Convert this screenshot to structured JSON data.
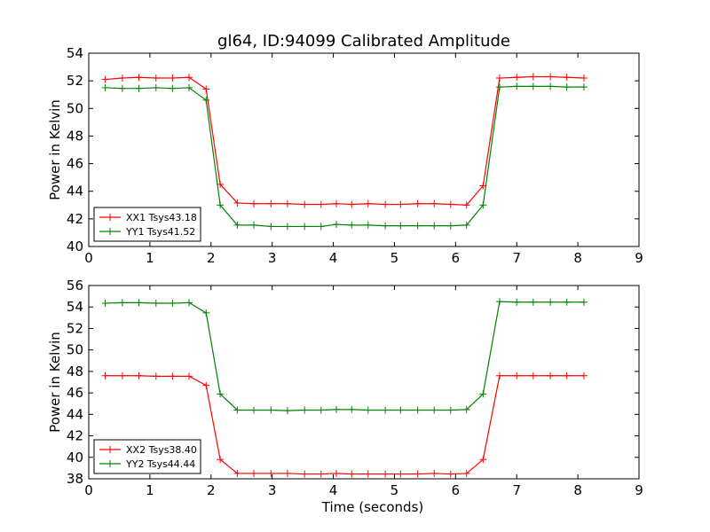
{
  "chart_data": [
    {
      "type": "line",
      "title": "gl64, ID:94099 Calibrated Amplitude",
      "xlabel": "",
      "ylabel": "Power in Kelvin",
      "xlim": [
        0,
        9
      ],
      "ylim": [
        40,
        54
      ],
      "xticks": [
        "0",
        "1",
        "2",
        "3",
        "4",
        "5",
        "6",
        "7",
        "8",
        "9"
      ],
      "yticks": [
        "40",
        "42",
        "44",
        "46",
        "48",
        "50",
        "52",
        "54"
      ],
      "legend_position": "lower-left",
      "grid": false,
      "x": [
        0.27,
        0.55,
        0.82,
        1.1,
        1.37,
        1.64,
        1.92,
        2.15,
        2.43,
        2.7,
        2.98,
        3.25,
        3.53,
        3.8,
        4.05,
        4.3,
        4.57,
        4.85,
        5.1,
        5.38,
        5.65,
        5.92,
        6.18,
        6.45,
        6.72,
        7.0,
        7.27,
        7.55,
        7.82,
        8.1
      ],
      "series": [
        {
          "name": "XX1 Tsys43.18",
          "color": "#ff0000",
          "values": [
            52.1,
            52.2,
            52.25,
            52.2,
            52.2,
            52.25,
            51.4,
            44.5,
            43.15,
            43.1,
            43.1,
            43.1,
            43.05,
            43.05,
            43.1,
            43.05,
            43.1,
            43.05,
            43.05,
            43.1,
            43.1,
            43.05,
            43.0,
            44.4,
            52.2,
            52.25,
            52.3,
            52.3,
            52.25,
            52.2
          ]
        },
        {
          "name": "YY1 Tsys41.52",
          "color": "#008000",
          "values": [
            51.5,
            51.45,
            51.45,
            51.5,
            51.45,
            51.5,
            50.6,
            43.0,
            41.55,
            41.55,
            41.45,
            41.45,
            41.45,
            41.45,
            41.6,
            41.55,
            41.55,
            41.5,
            41.5,
            41.5,
            41.5,
            41.5,
            41.55,
            43.0,
            51.55,
            51.6,
            51.6,
            51.6,
            51.55,
            51.55
          ]
        }
      ]
    },
    {
      "type": "line",
      "title": "",
      "xlabel": "Time (seconds)",
      "ylabel": "Power in Kelvin",
      "xlim": [
        0,
        9
      ],
      "ylim": [
        38,
        56
      ],
      "xticks": [
        "0",
        "1",
        "2",
        "3",
        "4",
        "5",
        "6",
        "7",
        "8",
        "9"
      ],
      "yticks": [
        "38",
        "40",
        "42",
        "44",
        "46",
        "48",
        "50",
        "52",
        "54",
        "56"
      ],
      "legend_position": "lower-left",
      "grid": false,
      "x": [
        0.27,
        0.55,
        0.82,
        1.1,
        1.37,
        1.64,
        1.92,
        2.15,
        2.43,
        2.7,
        2.98,
        3.25,
        3.53,
        3.8,
        4.05,
        4.3,
        4.57,
        4.85,
        5.1,
        5.38,
        5.65,
        5.92,
        6.18,
        6.45,
        6.72,
        7.0,
        7.27,
        7.55,
        7.82,
        8.1
      ],
      "series": [
        {
          "name": "XX2 Tsys38.40",
          "color": "#ff0000",
          "values": [
            47.6,
            47.6,
            47.6,
            47.55,
            47.55,
            47.55,
            46.7,
            39.8,
            38.5,
            38.5,
            38.5,
            38.5,
            38.45,
            38.45,
            38.5,
            38.45,
            38.45,
            38.45,
            38.45,
            38.45,
            38.5,
            38.45,
            38.5,
            39.8,
            47.6,
            47.6,
            47.6,
            47.6,
            47.6,
            47.6
          ]
        },
        {
          "name": "YY2 Tsys44.44",
          "color": "#008000",
          "values": [
            54.35,
            54.4,
            54.4,
            54.35,
            54.35,
            54.4,
            53.45,
            45.9,
            44.4,
            44.4,
            44.4,
            44.35,
            44.4,
            44.4,
            44.45,
            44.45,
            44.4,
            44.4,
            44.4,
            44.4,
            44.4,
            44.4,
            44.45,
            45.9,
            54.5,
            54.45,
            54.45,
            54.45,
            54.45,
            54.45
          ]
        }
      ]
    }
  ]
}
